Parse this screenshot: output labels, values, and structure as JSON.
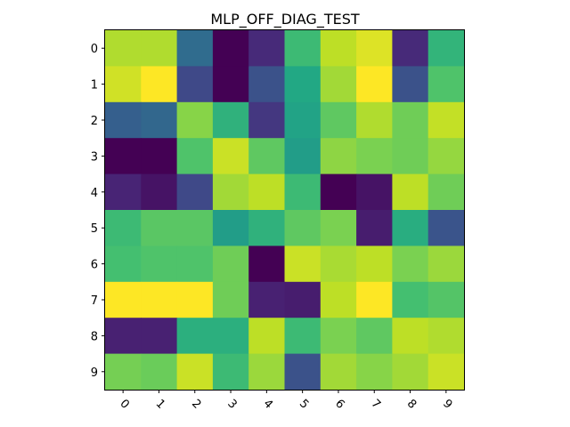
{
  "chart_data": {
    "type": "heatmap",
    "title": "MLP_OFF_DIAG_TEST",
    "xlabel": "",
    "ylabel": "",
    "x_ticks": [
      "0",
      "1",
      "2",
      "3",
      "4",
      "5",
      "6",
      "7",
      "8",
      "9"
    ],
    "y_ticks": [
      "0",
      "1",
      "2",
      "3",
      "4",
      "5",
      "6",
      "7",
      "8",
      "9"
    ],
    "colormap": "viridis",
    "value_range": [
      0,
      1
    ],
    "grid": false,
    "x_tick_rotation_deg": 45,
    "values": [
      [
        0.88,
        0.88,
        0.35,
        0.0,
        0.12,
        0.68,
        0.9,
        0.95,
        0.12,
        0.65
      ],
      [
        0.93,
        1.0,
        0.22,
        0.0,
        0.25,
        0.6,
        0.86,
        1.0,
        0.25,
        0.72
      ],
      [
        0.3,
        0.33,
        0.82,
        0.64,
        0.16,
        0.58,
        0.75,
        0.88,
        0.78,
        0.91
      ],
      [
        0.0,
        0.0,
        0.72,
        0.92,
        0.75,
        0.55,
        0.83,
        0.8,
        0.78,
        0.84
      ],
      [
        0.1,
        0.05,
        0.22,
        0.86,
        0.9,
        0.68,
        0.0,
        0.05,
        0.9,
        0.78
      ],
      [
        0.68,
        0.74,
        0.74,
        0.55,
        0.64,
        0.75,
        0.8,
        0.08,
        0.62,
        0.26
      ],
      [
        0.7,
        0.72,
        0.72,
        0.78,
        0.0,
        0.92,
        0.87,
        0.9,
        0.8,
        0.85
      ],
      [
        1.0,
        1.0,
        1.0,
        0.78,
        0.09,
        0.08,
        0.9,
        1.0,
        0.7,
        0.73
      ],
      [
        0.09,
        0.09,
        0.63,
        0.63,
        0.9,
        0.68,
        0.8,
        0.75,
        0.9,
        0.88
      ],
      [
        0.79,
        0.77,
        0.92,
        0.68,
        0.85,
        0.25,
        0.86,
        0.82,
        0.86,
        0.92
      ]
    ]
  }
}
